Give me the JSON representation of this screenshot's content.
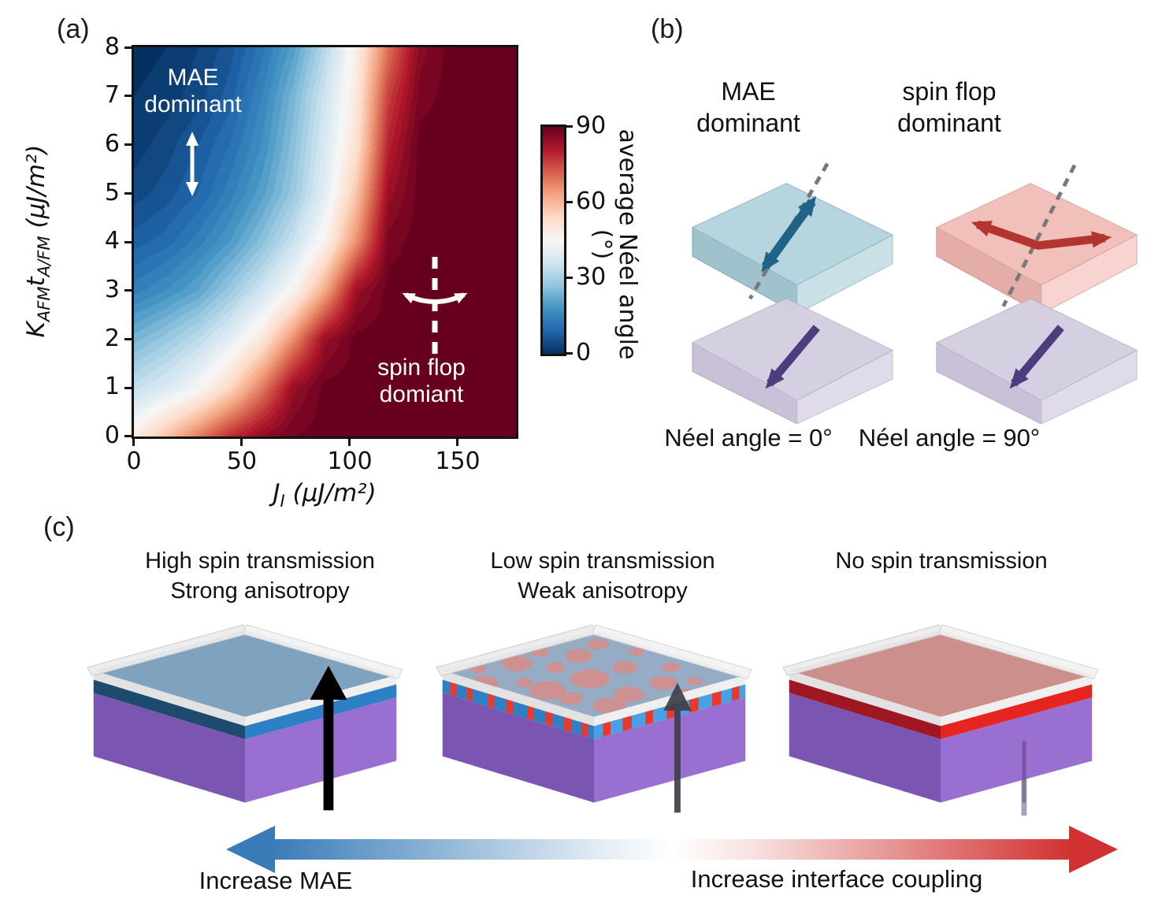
{
  "colors": {
    "background": "#ffffff",
    "axis": "#111111",
    "annotation_text": "#ffffff",
    "arrow_blue": "#3a7cb8",
    "arrow_red": "#d23131",
    "arrow_teal": "#1f6486",
    "arrow_dark_red": "#b23530",
    "arrow_purple": "#4c3e7e",
    "slab_blue": "#b3d3dc",
    "slab_pink": "#f0bdb7",
    "slab_lavender": "#d4cee0",
    "layer_purple": "#7b55b2",
    "layer_blue": "#2e80c6",
    "layer_red": "#e62520",
    "layer_dark_navy": "#1d4b6e",
    "layer_dark_red": "#9e1723",
    "box_top_blue": "#5e8cb0",
    "box_top_red": "#c0706b",
    "spin_arrow_black": "#000000",
    "spin_arrow_gray": "#3f3f4a"
  },
  "panel_a": {
    "label": "(a)",
    "ylabel": {
      "var1": "K",
      "sub1": "AFM",
      "var2": "t",
      "sub2": "A/FM",
      "units": "(μJ/m²)"
    },
    "xlabel": {
      "var1": "J",
      "sub1": "I",
      "units": "(μJ/m²)"
    },
    "x_ticks": [
      "0",
      "50",
      "100",
      "150"
    ],
    "y_ticks": [
      "0",
      "1",
      "2",
      "3",
      "4",
      "5",
      "6",
      "7",
      "8"
    ],
    "annotation_mae": {
      "line1": "MAE",
      "line2": "dominant"
    },
    "annotation_spinflop": {
      "line1": "spin flop",
      "line2": "domiant"
    },
    "colorbar": {
      "label": "average Néel angle (°)",
      "ticks_top_to_bottom": [
        "90",
        "60",
        "30",
        "0"
      ]
    }
  },
  "chart_data": {
    "type": "heatmap",
    "title": "",
    "xlabel": "J_I (μJ/m²)",
    "ylabel": "K_AFM t_A/FM (μJ/m²)",
    "colorbar_label": "average Néel angle (°)",
    "x": [
      0,
      15,
      30,
      45,
      60,
      75,
      90,
      105,
      120,
      135,
      150,
      165,
      180
    ],
    "y": [
      8,
      7,
      6,
      5,
      4,
      3,
      2,
      1,
      0
    ],
    "values": [
      [
        0,
        1,
        3,
        6,
        12,
        20,
        32,
        48,
        70,
        86,
        90,
        90,
        90
      ],
      [
        1,
        2,
        4,
        8,
        15,
        24,
        36,
        50,
        76,
        88,
        90,
        90,
        90
      ],
      [
        2,
        4,
        7,
        11,
        17,
        26,
        38,
        52,
        80,
        90,
        90,
        90,
        90
      ],
      [
        4,
        6,
        9,
        14,
        20,
        28,
        40,
        58,
        84,
        90,
        90,
        90,
        90
      ],
      [
        8,
        10,
        14,
        19,
        26,
        35,
        47,
        66,
        88,
        90,
        90,
        90,
        90
      ],
      [
        14,
        17,
        21,
        28,
        36,
        46,
        62,
        84,
        90,
        90,
        90,
        90,
        90
      ],
      [
        24,
        28,
        33,
        40,
        50,
        66,
        84,
        90,
        90,
        90,
        90,
        90,
        90
      ],
      [
        34,
        38,
        44,
        54,
        68,
        84,
        90,
        90,
        90,
        90,
        90,
        90,
        90
      ],
      [
        48,
        58,
        68,
        78,
        85,
        89,
        90,
        90,
        90,
        90,
        90,
        90,
        90
      ]
    ],
    "zlim": [
      0,
      90
    ],
    "xlim": [
      0,
      180
    ],
    "ylim": [
      0,
      8
    ],
    "levels_step": 2,
    "colormap": "RdBu_r",
    "colormap_rgb": [
      [
        5,
        48,
        97
      ],
      [
        33,
        102,
        172
      ],
      [
        67,
        147,
        195
      ],
      [
        146,
        197,
        222
      ],
      [
        209,
        229,
        240
      ],
      [
        247,
        247,
        247
      ],
      [
        253,
        219,
        199
      ],
      [
        244,
        165,
        130
      ],
      [
        214,
        96,
        77
      ],
      [
        178,
        24,
        43
      ],
      [
        103,
        0,
        31
      ]
    ],
    "legend_position": "right-colorbar",
    "grid": false
  },
  "panel_b": {
    "label": "(b)",
    "left": {
      "title_line1": "MAE",
      "title_line2": "dominant",
      "caption": "Néel angle = 0°"
    },
    "right": {
      "title_line1": "spin flop",
      "title_line2": "dominant",
      "caption": "Néel angle = 90°"
    }
  },
  "panel_c": {
    "label": "(c)",
    "captions": [
      {
        "line1": "High spin transmission",
        "line2": "Strong anisotropy"
      },
      {
        "line1": "Low spin transmission",
        "line2": "Weak anisotropy"
      },
      {
        "line1": "No spin transmission",
        "line2": ""
      }
    ],
    "axis_arrow": {
      "left_label": "Increase MAE",
      "right_label": "Increase interface coupling"
    }
  }
}
